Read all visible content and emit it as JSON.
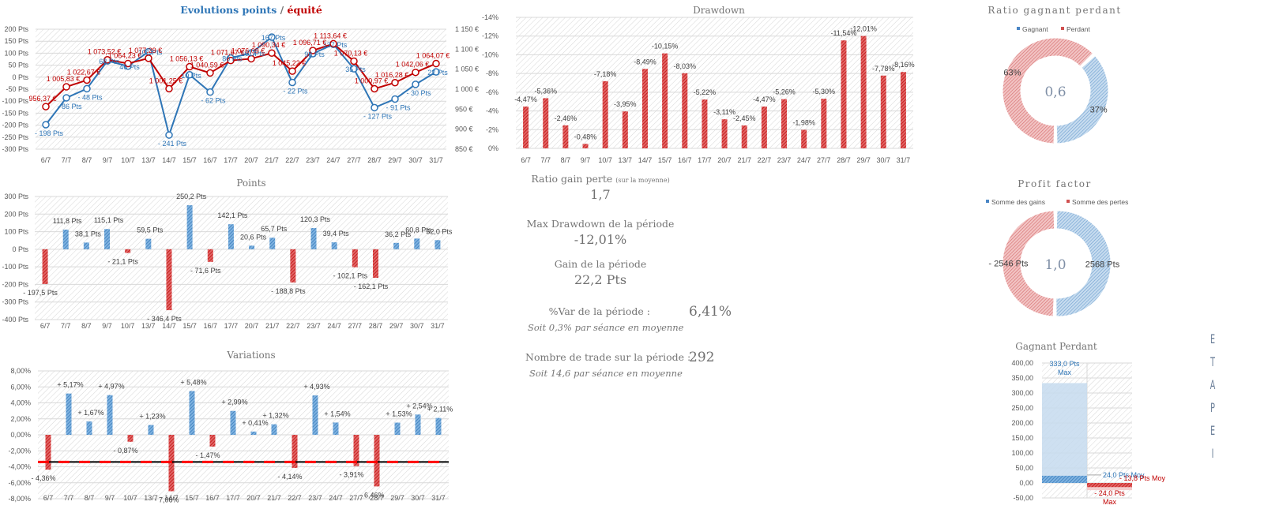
{
  "dates": [
    "6/7",
    "7/7",
    "8/7",
    "9/7",
    "10/7",
    "13/7",
    "14/7",
    "15/7",
    "16/7",
    "17/7",
    "20/7",
    "21/7",
    "22/7",
    "23/7",
    "24/7",
    "27/7",
    "28/7",
    "29/7",
    "30/7",
    "31/7"
  ],
  "colors": {
    "blue": "#2e75b6",
    "red": "#c00000",
    "bar_red": "#e04848",
    "bar_blue": "#3a86c8",
    "grid": "#d9d9d9",
    "title_blue": "#2e75b6"
  },
  "chart_data": [
    {
      "id": "evolution",
      "type": "line",
      "title_part1": "Evolutions points",
      "title_sep": " / ",
      "title_part2": "équité",
      "ylim_left": [
        -300,
        200
      ],
      "yticks_left": [
        "200 Pts",
        "150 Pts",
        "100 Pts",
        "50 Pts",
        "0 Pts",
        "-50 Pts",
        "-100 Pts",
        "-150 Pts",
        "-200 Pts",
        "-250 Pts",
        "-300 Pts"
      ],
      "ylim_right": [
        850,
        1150
      ],
      "yticks_right": [
        "1 150 €",
        "1 100 €",
        "1 050 €",
        "1 000 €",
        "950 €",
        "900 €",
        "850 €"
      ],
      "series": [
        {
          "name": "Points",
          "axis": "left",
          "values": [
            -198,
            -86,
            -48,
            68,
            46,
            106,
            -241,
            10,
            -62,
            80,
            101,
            167,
            -22,
            98,
            137,
            35,
            -127,
            -91,
            -30,
            22
          ],
          "labels": [
            "- 198 Pts",
            "- 86 Pts",
            "- 48 Pts",
            "68 Pts",
            "46 Pts",
            "106 Pts",
            "- 241 Pts",
            "10 Pts",
            "- 62 Pts",
            "80 Pts",
            "101 Pts",
            "167 Pts",
            "- 22 Pts",
            "98 Pts",
            "137 Pts",
            "35 Pts",
            "- 127 Pts",
            "- 91 Pts",
            "- 30 Pts",
            "22 Pts"
          ]
        },
        {
          "name": "Équité",
          "axis": "right",
          "values": [
            956.37,
            1005.83,
            1022.67,
            1073.52,
            1064.23,
            1077.29,
            1001.25,
            1056.13,
            1040.59,
            1071.67,
            1076.09,
            1090.34,
            1045.22,
            1096.71,
            1113.64,
            1070.13,
            1000.97,
            1016.28,
            1042.06,
            1064.07
          ],
          "labels": [
            "956,37 €",
            "1 005,83 €",
            "1 022,67 €",
            "1 073,52 €",
            "1 064,23 €",
            "1 077,29 €",
            "1 001,25 €",
            "1 056,13 €",
            "1 040,59 €",
            "1 071,67 €",
            "1 076,09 €",
            "1 090,34 €",
            "1 045,22 €",
            "1 096,71 €",
            "1 113,64 €",
            "1 070,13 €",
            "1 000,97 €",
            "1 016,28 €",
            "1 042,06 €",
            "1 064,07 €"
          ]
        }
      ]
    },
    {
      "id": "drawdown",
      "type": "bar",
      "title": "Drawdown",
      "ylim": [
        0,
        -14
      ],
      "yticks": [
        "-14%",
        "-12%",
        "-10%",
        "-8%",
        "-6%",
        "-4%",
        "-2%",
        "0%"
      ],
      "values": [
        -4.47,
        -5.36,
        -2.46,
        -0.48,
        -7.18,
        -3.95,
        -8.49,
        -10.15,
        -8.03,
        -5.22,
        -3.11,
        -2.45,
        -4.47,
        -5.26,
        -1.98,
        -5.3,
        -11.54,
        -12.01,
        -7.78,
        -8.16
      ],
      "labels": [
        "-4,47%",
        "-5,36%",
        "-2,46%",
        "-0,48%",
        "-7,18%",
        "-3,95%",
        "-8,49%",
        "-10,15%",
        "-8,03%",
        "-5,22%",
        "-3,11%",
        "-2,45%",
        "-4,47%",
        "-5,26%",
        "-1,98%",
        "-5,30%",
        "-11,54%",
        "-12,01%",
        "-7,78%",
        "-8,16%"
      ]
    },
    {
      "id": "points",
      "type": "bar",
      "title": "Points",
      "ylim": [
        -400,
        300
      ],
      "yticks": [
        "300 Pts",
        "200 Pts",
        "100 Pts",
        "0 Pts",
        "-100 Pts",
        "-200 Pts",
        "-300 Pts",
        "-400 Pts"
      ],
      "values": [
        -197.5,
        111.8,
        38.1,
        115.1,
        -21.1,
        59.5,
        -346.4,
        250.2,
        -71.6,
        142.1,
        20.6,
        65.7,
        -188.8,
        120.3,
        39.4,
        -102.1,
        -162.1,
        36.2,
        60.8,
        52.0
      ],
      "labels": [
        "- 197,5 Pts",
        "111,8 Pts",
        "38,1 Pts",
        "115,1 Pts",
        "- 21,1 Pts",
        "59,5 Pts",
        "- 346,4 Pts",
        "250,2 Pts",
        "- 71,6 Pts",
        "142,1 Pts",
        "20,6 Pts",
        "65,7 Pts",
        "- 188,8 Pts",
        "120,3 Pts",
        "39,4 Pts",
        "- 102,1 Pts",
        "- 162,1 Pts",
        "36,2 Pts",
        "60,8 Pts",
        "52,0 Pts"
      ]
    },
    {
      "id": "variations",
      "type": "bar",
      "title": "Variations",
      "ylim": [
        -8,
        8
      ],
      "yticks": [
        "8,00%",
        "6,00%",
        "4,00%",
        "2,00%",
        "0,00%",
        "-2,00%",
        "-4,00%",
        "-6,00%",
        "-8,00%"
      ],
      "values": [
        -4.36,
        5.17,
        1.67,
        4.97,
        -0.87,
        1.23,
        -7.06,
        5.48,
        -1.47,
        2.99,
        0.41,
        1.32,
        -4.14,
        4.93,
        1.54,
        -3.91,
        -6.46,
        1.53,
        2.54,
        2.11
      ],
      "labels": [
        "- 4,36%",
        "+ 5,17%",
        "+ 1,67%",
        "+ 4,97%",
        "- 0,87%",
        "+ 1,23%",
        "- 7,06%",
        "+ 5,48%",
        "- 1,47%",
        "+ 2,99%",
        "+ 0,41%",
        "+ 1,32%",
        "- 4,14%",
        "+ 4,93%",
        "+ 1,54%",
        "- 3,91%",
        "- 6,46%",
        "+ 1,53%",
        "+ 2,54%",
        "+ 2,11%"
      ],
      "reference_line": -3.4
    },
    {
      "id": "ratio",
      "type": "pie",
      "title": "Ratio gagnant perdant",
      "legend": [
        "Gagnant",
        "Perdant"
      ],
      "values": [
        37,
        63
      ],
      "labels": [
        "37%",
        "63%"
      ],
      "center": "0,6"
    },
    {
      "id": "profit",
      "type": "pie",
      "title": "Profit factor",
      "legend": [
        "Somme des gains",
        "Somme des pertes"
      ],
      "values": [
        2568,
        2546
      ],
      "labels": [
        "2568 Pts",
        "- 2546 Pts"
      ],
      "center": "1,0"
    },
    {
      "id": "gagnant_perdant",
      "type": "bar",
      "title": "Gagnant Perdant",
      "ylim": [
        -50,
        400
      ],
      "yticks": [
        "400,00",
        "350,00",
        "300,00",
        "250,00",
        "200,00",
        "150,00",
        "100,00",
        "50,00",
        "0,00",
        "-50,00"
      ],
      "series": [
        {
          "name": "Gagnant",
          "max": 333.0,
          "avg": 24.0,
          "max_label": "333,0 Pts",
          "max_sub": "Max",
          "avg_label": "24,0 Pts Moy"
        },
        {
          "name": "Perdant",
          "max": -24.0,
          "avg": -13.8,
          "max_label": "- 24,0 Pts",
          "max_sub": "Max",
          "avg_label": "- 13,8 Pts Moy"
        }
      ]
    }
  ],
  "stats": {
    "ratio_title": "Ratio gain perte",
    "ratio_note": "(sur la moyenne)",
    "ratio_value": "1,7",
    "maxdd_title": "Max Drawdown de la période",
    "maxdd_value": "-12,01%",
    "gain_title": "Gain de la période",
    "gain_value": "22,2 Pts",
    "var_title": "%Var de la période :",
    "var_value": "6,41%",
    "var_sub": "Soit 0,3% par séance en moyenne",
    "trades_title": "Nombre de trade sur la période :",
    "trades_value": "292",
    "trades_sub": "Soit 14,6 par séance en moyenne"
  },
  "side_label": [
    "E",
    "T",
    "A",
    "P",
    "E",
    "",
    "I"
  ]
}
